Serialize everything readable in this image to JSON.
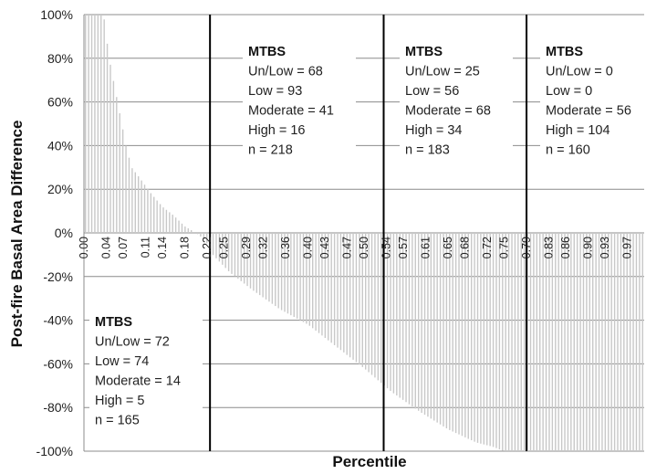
{
  "chart_data": {
    "type": "bar",
    "xlabel": "Percentile",
    "ylabel": "Post-fire Basal Area Difference",
    "ylim": [
      -100,
      100
    ],
    "xlim": [
      0,
      1
    ],
    "y_ticks": [
      "100%",
      "80%",
      "60%",
      "40%",
      "20%",
      "0%",
      "-20%",
      "-40%",
      "-60%",
      "-80%",
      "-100%"
    ],
    "y_tick_values": [
      100,
      80,
      60,
      40,
      20,
      0,
      -20,
      -40,
      -60,
      -80,
      -100
    ],
    "x_ticks": [
      "0.00",
      "0.04",
      "0.07",
      "0.11",
      "0.14",
      "0.18",
      "0.22",
      "0.25",
      "0.29",
      "0.32",
      "0.36",
      "0.40",
      "0.43",
      "0.47",
      "0.50",
      "0.54",
      "0.57",
      "0.61",
      "0.65",
      "0.68",
      "0.72",
      "0.75",
      "0.79",
      "0.83",
      "0.86",
      "0.90",
      "0.93",
      "0.97"
    ],
    "grid": true,
    "series_profile": {
      "percentile": [
        0.0,
        0.035,
        0.045,
        0.06,
        0.075,
        0.085,
        0.1,
        0.12,
        0.14,
        0.16,
        0.18,
        0.2,
        0.215,
        0.22,
        0.23,
        0.26,
        0.3,
        0.35,
        0.4,
        0.45,
        0.5,
        0.55,
        0.6,
        0.65,
        0.7,
        0.73,
        0.75,
        1.0
      ],
      "value": [
        100,
        100,
        80,
        60,
        40,
        30,
        25,
        18,
        12,
        8,
        3,
        0,
        -3,
        -5,
        -10,
        -18,
        -26,
        -35,
        -42,
        -52,
        -62,
        -73,
        -82,
        -90,
        -96,
        -98,
        -100,
        -100
      ]
    },
    "dividers": [
      0.225,
      0.535,
      0.79
    ],
    "annotations": [
      {
        "title": "MTBS",
        "lines": [
          "Un/Low = 72",
          "Low = 74",
          "Moderate = 14",
          "High = 5",
          "n = 165"
        ]
      },
      {
        "title": "MTBS",
        "lines": [
          "Un/Low = 68",
          "Low = 93",
          "Moderate = 41",
          "High = 16",
          "n = 218"
        ]
      },
      {
        "title": "MTBS",
        "lines": [
          "Un/Low = 25",
          "Low = 56",
          "Moderate = 68",
          "High = 34",
          "n = 183"
        ]
      },
      {
        "title": "MTBS",
        "lines": [
          "Un/Low = 0",
          "Low = 0",
          "Moderate = 56",
          "High = 104",
          "n = 160"
        ]
      }
    ],
    "colors": {
      "bars": "#c8c8c8",
      "grid": "#8c8c8c",
      "divider": "#000000"
    }
  }
}
